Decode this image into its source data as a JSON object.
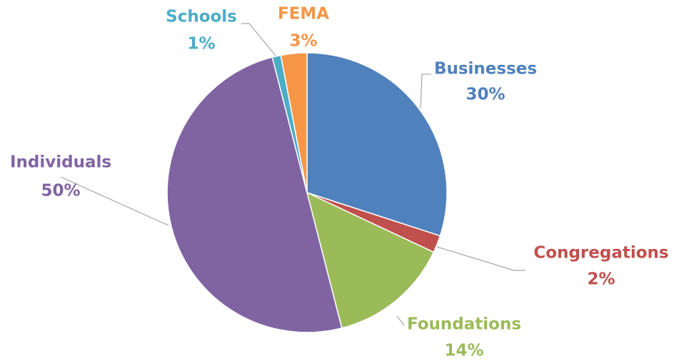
{
  "chart_data": {
    "type": "pie",
    "categories": [
      "Businesses",
      "Congregations",
      "Foundations",
      "Individuals",
      "Schools",
      "FEMA"
    ],
    "values": [
      30,
      2,
      14,
      50,
      1,
      3
    ],
    "value_labels": [
      "30%",
      "2%",
      "14%",
      "50%",
      "1%",
      "3%"
    ],
    "colors": [
      "#4f81bd",
      "#c0504d",
      "#9bbb59",
      "#8064a2",
      "#4bacc6",
      "#f79646"
    ]
  }
}
